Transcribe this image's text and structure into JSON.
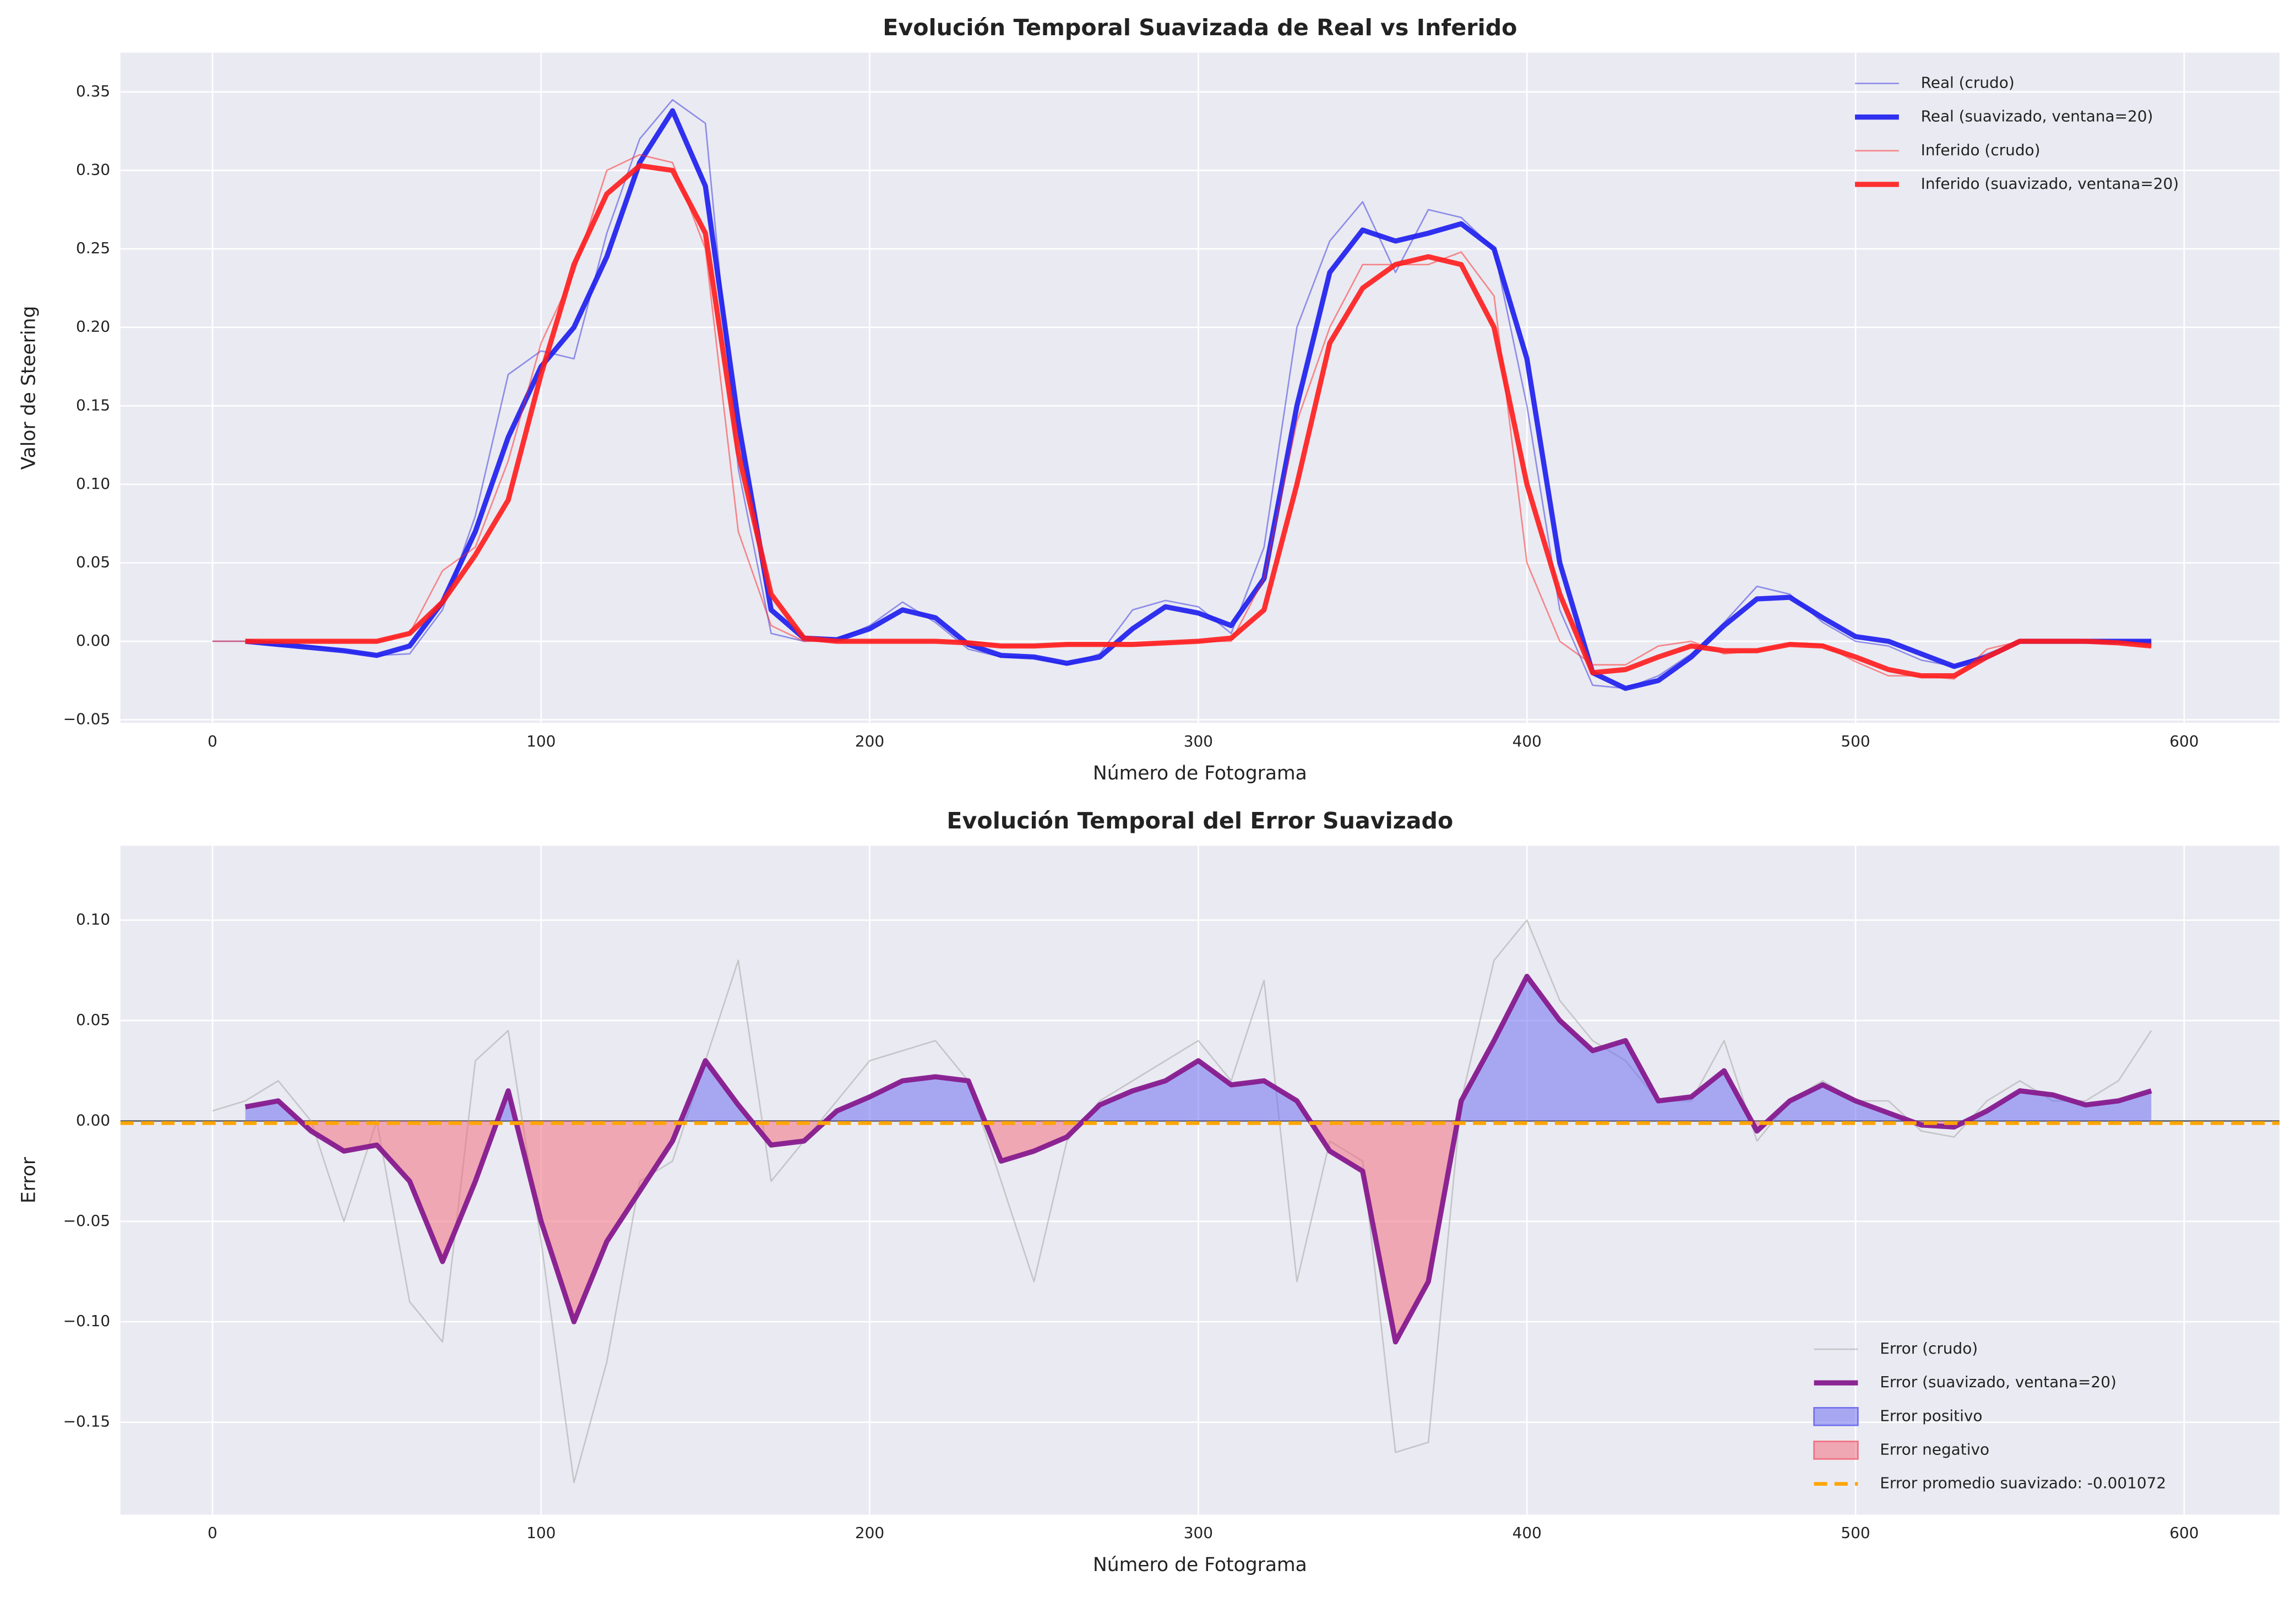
{
  "chart_data": [
    {
      "type": "line",
      "title": "Evolución Temporal Suavizada de Real vs Inferido",
      "xlabel": "Número de Fotograma",
      "ylabel": "Valor de Steering",
      "xlim": [
        -28,
        629
      ],
      "ylim": [
        -0.052,
        0.375
      ],
      "xticks": [
        0,
        100,
        200,
        300,
        400,
        500,
        600
      ],
      "yticks": [
        {
          "value": -0.05,
          "label": "−0.05"
        },
        {
          "value": 0,
          "label": "0.00"
        },
        {
          "value": 0.05,
          "label": "0.05"
        },
        {
          "value": 0.1,
          "label": "0.10"
        },
        {
          "value": 0.15,
          "label": "0.15"
        },
        {
          "value": 0.2,
          "label": "0.20"
        },
        {
          "value": 0.25,
          "label": "0.25"
        },
        {
          "value": 0.3,
          "label": "0.30"
        },
        {
          "value": 0.35,
          "label": "0.35"
        }
      ],
      "grid": true,
      "legend": "upper right",
      "series": [
        {
          "name": "Real (crudo)",
          "color": "#3030e0",
          "linewidth": 1,
          "alpha": 0.5,
          "x": [
            0,
            10,
            20,
            30,
            40,
            50,
            60,
            70,
            80,
            90,
            100,
            110,
            120,
            130,
            140,
            150,
            160,
            170,
            180,
            190,
            200,
            210,
            220,
            230,
            240,
            250,
            260,
            270,
            280,
            290,
            300,
            310,
            320,
            330,
            340,
            350,
            360,
            370,
            380,
            390,
            400,
            410,
            420,
            430,
            440,
            450,
            460,
            470,
            480,
            490,
            500,
            510,
            520,
            530,
            540,
            550,
            560,
            570,
            580,
            590
          ],
          "values": [
            0,
            0,
            -0.003,
            -0.003,
            -0.006,
            -0.009,
            -0.008,
            0.02,
            0.08,
            0.17,
            0.185,
            0.18,
            0.26,
            0.32,
            0.345,
            0.33,
            0.11,
            0.005,
            0,
            0.001,
            0.01,
            0.025,
            0.012,
            -0.005,
            -0.01,
            -0.01,
            -0.015,
            -0.008,
            0.02,
            0.026,
            0.022,
            0.005,
            0.06,
            0.2,
            0.255,
            0.28,
            0.235,
            0.275,
            0.27,
            0.25,
            0.15,
            0.02,
            -0.028,
            -0.03,
            -0.022,
            -0.008,
            0.012,
            0.035,
            0.03,
            0.012,
            0,
            -0.003,
            -0.012,
            -0.016,
            -0.008,
            0,
            0,
            0,
            0,
            0
          ]
        },
        {
          "name": "Real (suavizado, ventana=20)",
          "color": "#1c1cee",
          "linewidth": 3.5,
          "alpha": 0.9,
          "x": [
            10,
            20,
            30,
            40,
            50,
            60,
            70,
            80,
            90,
            100,
            110,
            120,
            130,
            140,
            150,
            160,
            170,
            180,
            190,
            200,
            210,
            220,
            230,
            240,
            250,
            260,
            270,
            280,
            290,
            300,
            310,
            320,
            330,
            340,
            350,
            360,
            370,
            380,
            390,
            400,
            410,
            420,
            430,
            440,
            450,
            460,
            470,
            480,
            490,
            500,
            510,
            520,
            530,
            540,
            550,
            560,
            570,
            580,
            590
          ],
          "values": [
            0,
            -0.002,
            -0.004,
            -0.006,
            -0.009,
            -0.003,
            0.025,
            0.07,
            0.13,
            0.175,
            0.2,
            0.245,
            0.305,
            0.338,
            0.29,
            0.14,
            0.02,
            0.002,
            0.001,
            0.008,
            0.02,
            0.015,
            -0.002,
            -0.009,
            -0.01,
            -0.014,
            -0.01,
            0.008,
            0.022,
            0.018,
            0.01,
            0.04,
            0.15,
            0.235,
            0.262,
            0.255,
            0.26,
            0.266,
            0.25,
            0.18,
            0.05,
            -0.02,
            -0.03,
            -0.025,
            -0.01,
            0.01,
            0.027,
            0.028,
            0.015,
            0.003,
            0,
            -0.008,
            -0.016,
            -0.01,
            0,
            0,
            0,
            0,
            0
          ]
        },
        {
          "name": "Inferido (crudo)",
          "color": "#ff2020",
          "linewidth": 1,
          "alpha": 0.5,
          "x": [
            0,
            10,
            20,
            30,
            40,
            50,
            60,
            70,
            80,
            90,
            100,
            110,
            120,
            130,
            140,
            150,
            160,
            170,
            180,
            190,
            200,
            210,
            220,
            230,
            240,
            250,
            260,
            270,
            280,
            290,
            300,
            310,
            320,
            330,
            340,
            350,
            360,
            370,
            380,
            390,
            400,
            410,
            420,
            430,
            440,
            450,
            460,
            470,
            480,
            490,
            500,
            510,
            520,
            530,
            540,
            550,
            560,
            570,
            580,
            590
          ],
          "values": [
            0,
            0,
            0,
            0,
            0,
            0,
            0.005,
            0.045,
            0.06,
            0.115,
            0.19,
            0.235,
            0.3,
            0.31,
            0.305,
            0.25,
            0.07,
            0.01,
            0,
            0,
            0,
            0,
            0,
            0,
            -0.003,
            -0.003,
            -0.002,
            -0.002,
            -0.003,
            -0.001,
            0,
            0,
            0.04,
            0.14,
            0.2,
            0.24,
            0.24,
            0.24,
            0.248,
            0.22,
            0.05,
            0,
            -0.015,
            -0.015,
            -0.003,
            0,
            -0.008,
            -0.006,
            -0.002,
            -0.002,
            -0.013,
            -0.022,
            -0.022,
            -0.024,
            -0.005,
            0,
            0,
            0,
            0,
            -0.003
          ]
        },
        {
          "name": "Inferido (suavizado, ventana=20)",
          "color": "#ff1c1c",
          "linewidth": 3.5,
          "alpha": 0.9,
          "x": [
            10,
            20,
            30,
            40,
            50,
            60,
            70,
            80,
            90,
            100,
            110,
            120,
            130,
            140,
            150,
            160,
            170,
            180,
            190,
            200,
            210,
            220,
            230,
            240,
            250,
            260,
            270,
            280,
            290,
            300,
            310,
            320,
            330,
            340,
            350,
            360,
            370,
            380,
            390,
            400,
            410,
            420,
            430,
            440,
            450,
            460,
            470,
            480,
            490,
            500,
            510,
            520,
            530,
            540,
            550,
            560,
            570,
            580,
            590
          ],
          "values": [
            0,
            0,
            0,
            0,
            0,
            0.005,
            0.025,
            0.055,
            0.09,
            0.17,
            0.24,
            0.285,
            0.303,
            0.3,
            0.26,
            0.12,
            0.03,
            0.002,
            0,
            0,
            0,
            0,
            -0.001,
            -0.003,
            -0.003,
            -0.002,
            -0.002,
            -0.002,
            -0.001,
            0,
            0.002,
            0.02,
            0.1,
            0.19,
            0.225,
            0.24,
            0.245,
            0.24,
            0.2,
            0.1,
            0.03,
            -0.02,
            -0.018,
            -0.01,
            -0.003,
            -0.006,
            -0.006,
            -0.002,
            -0.003,
            -0.01,
            -0.018,
            -0.022,
            -0.022,
            -0.01,
            0,
            0,
            0,
            -0.001,
            -0.003
          ]
        }
      ]
    },
    {
      "type": "line",
      "title": "Evolución Temporal del Error Suavizado",
      "xlabel": "Número de Fotograma",
      "ylabel": "Error",
      "xlim": [
        -28,
        629
      ],
      "ylim": [
        -0.196,
        0.137
      ],
      "xticks": [
        0,
        100,
        200,
        300,
        400,
        500,
        600
      ],
      "yticks": [
        {
          "value": -0.15,
          "label": "−0.15"
        },
        {
          "value": -0.1,
          "label": "−0.10"
        },
        {
          "value": -0.05,
          "label": "−0.05"
        },
        {
          "value": 0,
          "label": "0.00"
        },
        {
          "value": 0.05,
          "label": "0.05"
        },
        {
          "value": 0.1,
          "label": "0.10"
        }
      ],
      "grid": true,
      "legend": "lower right",
      "series": [
        {
          "name": "Error (crudo)",
          "color": "#a0a0a0",
          "linewidth": 1,
          "alpha": 0.5,
          "x": [
            0,
            10,
            20,
            30,
            40,
            50,
            60,
            70,
            80,
            90,
            100,
            110,
            120,
            130,
            140,
            150,
            160,
            170,
            180,
            190,
            200,
            210,
            220,
            230,
            240,
            250,
            260,
            270,
            280,
            290,
            300,
            310,
            320,
            330,
            340,
            350,
            360,
            370,
            380,
            390,
            400,
            410,
            420,
            430,
            440,
            450,
            460,
            470,
            480,
            490,
            500,
            510,
            520,
            530,
            540,
            550,
            560,
            570,
            580,
            590
          ],
          "values": [
            0.005,
            0.01,
            0.02,
            0,
            -0.05,
            0,
            -0.09,
            -0.11,
            0.03,
            0.045,
            -0.06,
            -0.18,
            -0.12,
            -0.03,
            -0.02,
            0.03,
            0.08,
            -0.03,
            -0.01,
            0.01,
            0.03,
            0.035,
            0.04,
            0.02,
            -0.03,
            -0.08,
            -0.01,
            0.01,
            0.02,
            0.03,
            0.04,
            0.02,
            0.07,
            -0.08,
            -0.01,
            -0.02,
            -0.165,
            -0.16,
            0.01,
            0.08,
            0.1,
            0.06,
            0.04,
            0.03,
            0.01,
            0.01,
            0.04,
            -0.01,
            0.01,
            0.02,
            0.01,
            0.01,
            -0.005,
            -0.008,
            0.01,
            0.02,
            0.01,
            0.01,
            0.02,
            0.045
          ]
        },
        {
          "name": "Error (suavizado, ventana=20)",
          "color": "#861a8e",
          "linewidth": 3.5,
          "alpha": 0.95,
          "x": [
            10,
            20,
            30,
            40,
            50,
            60,
            70,
            80,
            90,
            100,
            110,
            120,
            130,
            140,
            150,
            160,
            170,
            180,
            190,
            200,
            210,
            220,
            230,
            240,
            250,
            260,
            270,
            280,
            290,
            300,
            310,
            320,
            330,
            340,
            350,
            360,
            370,
            380,
            390,
            400,
            410,
            420,
            430,
            440,
            450,
            460,
            470,
            480,
            490,
            500,
            510,
            520,
            530,
            540,
            550,
            560,
            570,
            580,
            590
          ],
          "values": [
            0.007,
            0.01,
            -0.005,
            -0.015,
            -0.012,
            -0.03,
            -0.07,
            -0.03,
            0.015,
            -0.05,
            -0.1,
            -0.06,
            -0.035,
            -0.01,
            0.03,
            0.008,
            -0.012,
            -0.01,
            0.005,
            0.012,
            0.02,
            0.022,
            0.02,
            -0.02,
            -0.015,
            -0.008,
            0.008,
            0.015,
            0.02,
            0.03,
            0.018,
            0.02,
            0.01,
            -0.015,
            -0.025,
            -0.11,
            -0.08,
            0.01,
            0.04,
            0.072,
            0.05,
            0.035,
            0.04,
            0.01,
            0.012,
            0.025,
            -0.005,
            0.01,
            0.018,
            0.01,
            0.004,
            -0.002,
            -0.003,
            0.005,
            0.015,
            0.013,
            0.008,
            0.01,
            0.015
          ],
          "fills": [
            {
              "name": "Error positivo",
              "color": "#7070f0",
              "alpha": 0.55,
              "where": "above"
            },
            {
              "name": "Error negativo",
              "color": "#f07080",
              "alpha": 0.55,
              "where": "below"
            }
          ]
        }
      ],
      "hlines": [
        {
          "name": "Error promedio suavizado: -0.001072",
          "value": -0.001072,
          "color": "#ffa500",
          "dashed": true
        }
      ]
    }
  ]
}
